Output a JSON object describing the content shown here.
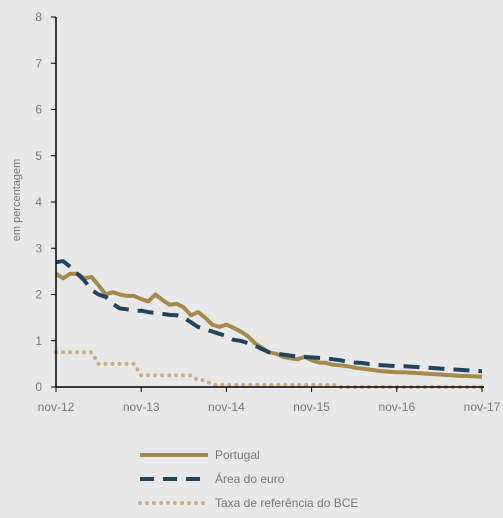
{
  "chart_data": {
    "type": "line",
    "title": "",
    "xlabel": "",
    "ylabel": "em percentagem",
    "ylim": [
      0,
      8
    ],
    "y_ticks": [
      "0",
      "1",
      "2",
      "3",
      "4",
      "5",
      "6",
      "7",
      "8"
    ],
    "x_ticks": [
      "nov-12",
      "nov-13",
      "nov-14",
      "nov-15",
      "nov-16",
      "nov-17"
    ],
    "grid": false,
    "legend_position": "bottom",
    "series": [
      {
        "name": "Portugal",
        "style": "solid",
        "color": "#a58a4c",
        "x": [
          0,
          1,
          2,
          3,
          4,
          5,
          6,
          7,
          8,
          9,
          10,
          11,
          12,
          13,
          14,
          15,
          16,
          17,
          18,
          19,
          20,
          21,
          22,
          23,
          24,
          25,
          26,
          27,
          28,
          29,
          30,
          31,
          32,
          33,
          34,
          35,
          36,
          37,
          38,
          39,
          40,
          41,
          42,
          43,
          44,
          45,
          46,
          47,
          48,
          49,
          50,
          51,
          52,
          53,
          54,
          55,
          56,
          57,
          58,
          59,
          60
        ],
        "values": [
          2.45,
          2.35,
          2.45,
          2.45,
          2.35,
          2.38,
          2.2,
          2.0,
          2.05,
          2.0,
          1.97,
          1.97,
          1.9,
          1.85,
          2.0,
          1.88,
          1.78,
          1.8,
          1.72,
          1.55,
          1.62,
          1.5,
          1.35,
          1.3,
          1.35,
          1.28,
          1.2,
          1.1,
          0.95,
          0.85,
          0.75,
          0.72,
          0.65,
          0.62,
          0.6,
          0.65,
          0.58,
          0.53,
          0.52,
          0.48,
          0.47,
          0.45,
          0.42,
          0.4,
          0.38,
          0.36,
          0.34,
          0.33,
          0.32,
          0.32,
          0.31,
          0.3,
          0.29,
          0.28,
          0.27,
          0.26,
          0.25,
          0.24,
          0.24,
          0.23,
          0.22
        ]
      },
      {
        "name": "Área do euro",
        "style": "dashed",
        "color": "#1d4560",
        "x": [
          0,
          1,
          2,
          3,
          4,
          5,
          6,
          7,
          8,
          9,
          10,
          11,
          12,
          13,
          14,
          15,
          16,
          17,
          18,
          19,
          20,
          21,
          22,
          23,
          24,
          25,
          26,
          27,
          28,
          29,
          30,
          31,
          32,
          33,
          34,
          35,
          36,
          37,
          38,
          39,
          40,
          41,
          42,
          43,
          44,
          45,
          46,
          47,
          48,
          49,
          50,
          51,
          52,
          53,
          54,
          55,
          56,
          57,
          58,
          59,
          60
        ],
        "values": [
          2.7,
          2.72,
          2.6,
          2.45,
          2.3,
          2.1,
          2.0,
          1.95,
          1.8,
          1.7,
          1.68,
          1.65,
          1.65,
          1.62,
          1.6,
          1.58,
          1.56,
          1.55,
          1.5,
          1.4,
          1.3,
          1.25,
          1.2,
          1.15,
          1.1,
          1.02,
          1.0,
          0.95,
          0.9,
          0.82,
          0.75,
          0.72,
          0.7,
          0.68,
          0.66,
          0.65,
          0.64,
          0.63,
          0.62,
          0.6,
          0.58,
          0.55,
          0.53,
          0.52,
          0.5,
          0.48,
          0.47,
          0.46,
          0.45,
          0.45,
          0.44,
          0.43,
          0.42,
          0.41,
          0.4,
          0.39,
          0.38,
          0.37,
          0.36,
          0.35,
          0.34
        ]
      },
      {
        "name": "Taxa de referência do BCE",
        "style": "dotted",
        "color": "#c9ad7c",
        "x": [
          0,
          1,
          2,
          3,
          4,
          5,
          6,
          7,
          8,
          9,
          10,
          11,
          12,
          13,
          14,
          15,
          16,
          17,
          18,
          19,
          20,
          21,
          22,
          23,
          24,
          25,
          26,
          27,
          28,
          29,
          30,
          31,
          32,
          33,
          34,
          35,
          36,
          37,
          38,
          39,
          40,
          41,
          42,
          43,
          44,
          45,
          46,
          47,
          48,
          49,
          50,
          51,
          52,
          53,
          54,
          55,
          56,
          57,
          58,
          59,
          60
        ],
        "values": [
          0.75,
          0.75,
          0.75,
          0.75,
          0.75,
          0.75,
          0.5,
          0.5,
          0.5,
          0.5,
          0.5,
          0.5,
          0.25,
          0.25,
          0.25,
          0.25,
          0.25,
          0.25,
          0.25,
          0.25,
          0.15,
          0.15,
          0.05,
          0.05,
          0.05,
          0.05,
          0.05,
          0.05,
          0.05,
          0.05,
          0.05,
          0.05,
          0.05,
          0.05,
          0.05,
          0.05,
          0.05,
          0.05,
          0.05,
          0.05,
          0,
          0,
          0,
          0,
          0,
          0,
          0,
          0,
          0,
          0,
          0,
          0,
          0,
          0,
          0,
          0,
          0,
          0,
          0,
          0,
          0
        ]
      }
    ]
  }
}
